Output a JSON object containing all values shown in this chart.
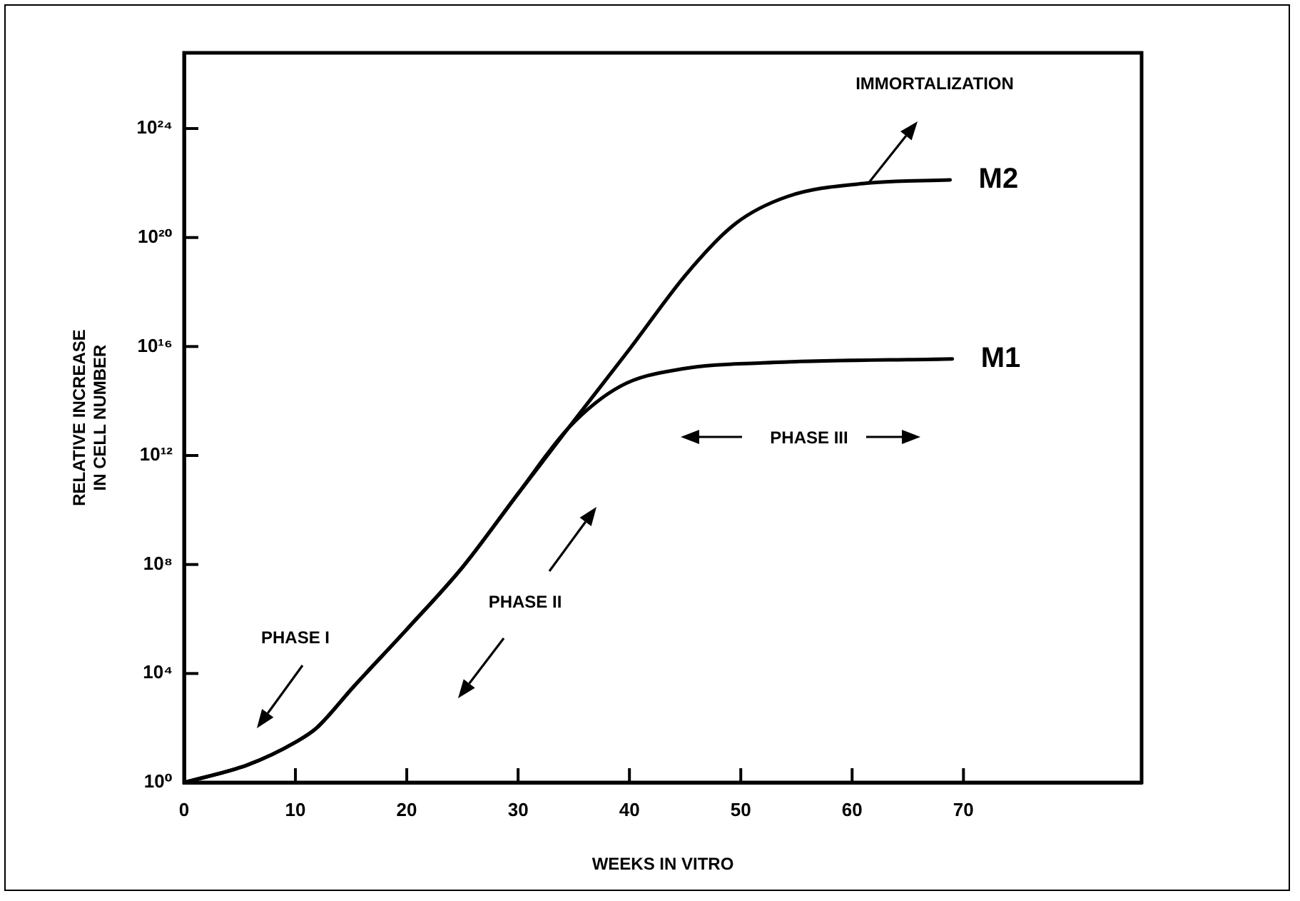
{
  "chart_data": {
    "type": "line",
    "xlabel": "WEEKS IN VITRO",
    "ylabel": "RELATIVE INCREASE\nIN CELL NUMBER",
    "log": "y",
    "marker": "none",
    "legend": false,
    "grid": false,
    "xlim": [
      0,
      86
    ],
    "xticks": [
      0,
      10,
      20,
      30,
      40,
      50,
      60,
      70
    ],
    "ylim": [
      1,
      6e+26
    ],
    "yticks": [
      {
        "value": 1,
        "label": "10⁰"
      },
      {
        "value": 10000.0,
        "label": "10⁴"
      },
      {
        "value": 100000000.0,
        "label": "10⁸"
      },
      {
        "value": 1000000000000.0,
        "label": "10¹²"
      },
      {
        "value": 1e+16,
        "label": "10¹⁶"
      },
      {
        "value": 1e+20,
        "label": "10²⁰"
      },
      {
        "value": 1e+24,
        "label": "10²⁴"
      }
    ],
    "series": [
      {
        "name": "M1",
        "color": "#000000",
        "x": [
          0,
          5.7,
          10,
          11.9,
          15.2,
          20.1,
          25,
          30,
          34.5,
          39.2,
          44.7,
          52,
          69
        ],
        "values": [
          1,
          4.4,
          30,
          100,
          3200,
          460000,
          79000000.0,
          40000000000.0,
          10000000000000.0,
          350000000000000.0,
          1500000000000000.0,
          2500000000000000.0,
          3500000000000000.0
        ]
      },
      {
        "name": "M2",
        "color": "#000000",
        "x": [
          0,
          5.7,
          10,
          11.9,
          15.2,
          20.1,
          25,
          30,
          34.5,
          40,
          45.2,
          49.5,
          54.2,
          61.5,
          68.8
        ],
        "values": [
          1,
          4.4,
          30,
          100,
          3200,
          460000,
          79000000.0,
          40000000000.0,
          10000000000000.0,
          7900000000000000.0,
          5e+18,
          3.2e+20,
          3.2e+21,
          1e+22,
          1.3e+22
        ]
      }
    ],
    "annotations": [
      "PHASE I",
      "PHASE II",
      "PHASE III",
      "IMMORTALIZATION"
    ]
  }
}
